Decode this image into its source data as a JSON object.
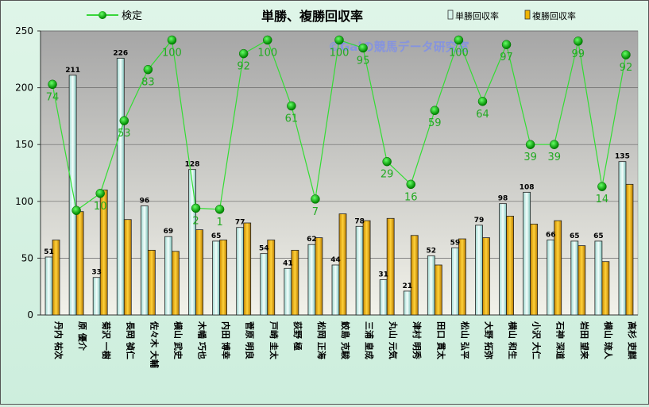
{
  "chart_data": {
    "type": "bar",
    "title": "単勝、複勝回収率",
    "watermark": "©Gaiの競馬データ研究室",
    "categories": [
      "丹内 祐次",
      "原 優介",
      "菊沢 一樹",
      "長岡 禎仁",
      "佐々木 大輔",
      "横山 武史",
      "木幡 巧也",
      "内田 博幸",
      "菅原 明良",
      "戸崎 圭太",
      "荻野 極",
      "松岡 正海",
      "鮫島 克駿",
      "三浦 皇成",
      "丸山 元気",
      "津村 明秀",
      "田口 貫太",
      "松山 弘平",
      "大野 拓弥",
      "横山 和生",
      "小沢 大仁",
      "石神 深道",
      "岩田 望来",
      "横山 琉人",
      "高杉 吏麒"
    ],
    "ylim": [
      0,
      250
    ],
    "yticks": [
      0,
      50,
      100,
      150,
      200,
      250
    ],
    "grid": true,
    "legend_position": "top",
    "series": [
      {
        "name": "単勝回収率",
        "kind": "bar",
        "color": "#d8f4ec",
        "values": [
          51,
          211,
          33,
          226,
          96,
          69,
          128,
          65,
          77,
          54,
          41,
          62,
          44,
          78,
          31,
          21,
          52,
          59,
          79,
          98,
          108,
          66,
          65,
          65,
          135
        ]
      },
      {
        "name": "複勝回収率",
        "kind": "bar",
        "color": "#f0b400",
        "values": [
          66,
          91,
          110,
          84,
          57,
          56,
          75,
          66,
          81,
          66,
          57,
          68,
          89,
          83,
          85,
          70,
          44,
          67,
          68,
          87,
          80,
          83,
          61,
          47,
          115
        ]
      },
      {
        "name": "検定",
        "kind": "line",
        "color": "#00cc00",
        "labels": [
          74,
          "",
          10,
          53,
          83,
          100,
          2,
          1,
          92,
          100,
          61,
          7,
          100,
          95,
          29,
          16,
          59,
          100,
          64,
          97,
          39,
          39,
          99,
          14,
          92
        ],
        "values": [
          203,
          92,
          107,
          171,
          216,
          242,
          94,
          93,
          230,
          242,
          184,
          102,
          242,
          235,
          135,
          115,
          180,
          242,
          188,
          238,
          150,
          150,
          241,
          113,
          229
        ]
      }
    ]
  }
}
